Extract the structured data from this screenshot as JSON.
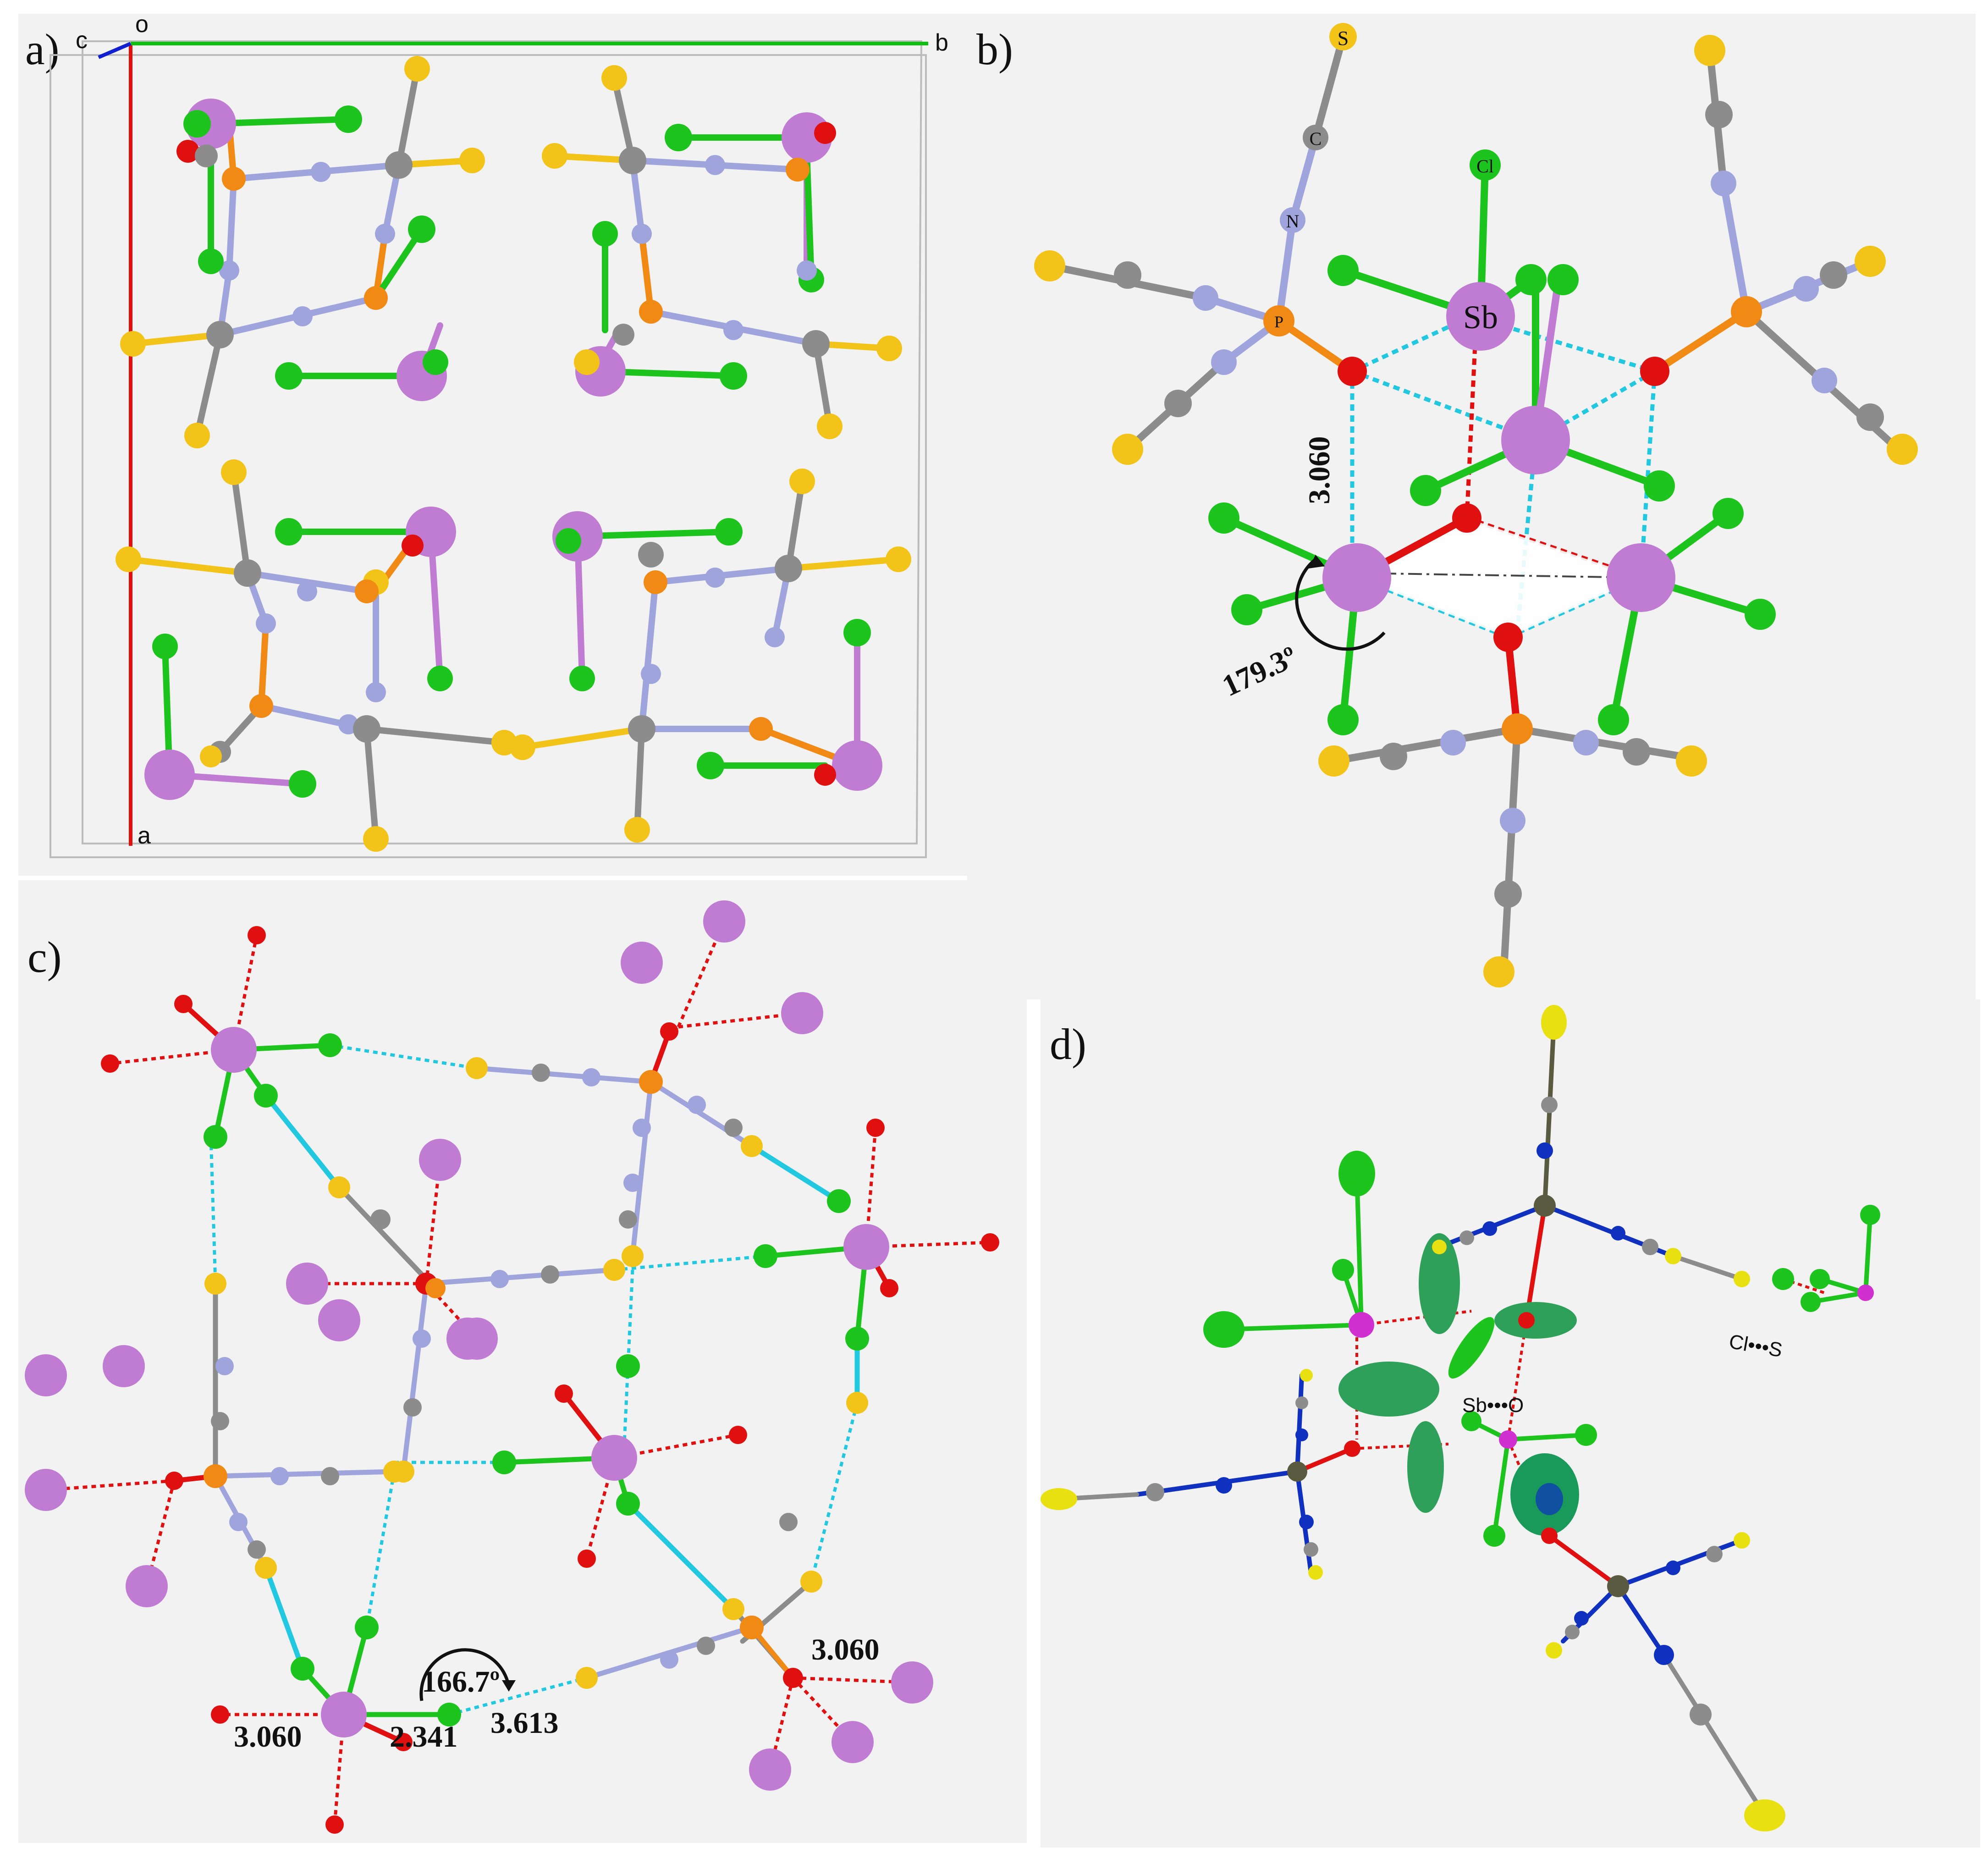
{
  "figure": {
    "panels": [
      {
        "id": "a",
        "label": "a)"
      },
      {
        "id": "b",
        "label": "b)"
      },
      {
        "id": "c",
        "label": "c)"
      },
      {
        "id": "d",
        "label": "d)"
      }
    ]
  },
  "panel_a": {
    "axis_labels": {
      "c": "c",
      "o": "o",
      "b": "b",
      "a": "a"
    }
  },
  "panel_b": {
    "atom_labels": {
      "s": "S",
      "c": "C",
      "n": "N",
      "p": "P",
      "cl": "Cl",
      "sb": "Sb"
    },
    "distance": "3.060",
    "angle": "179.3º"
  },
  "panel_c": {
    "angle": "166.7º",
    "distances": [
      "3.060",
      "2.341",
      "3.613",
      "3.060"
    ]
  },
  "panel_d": {
    "interaction_labels": [
      "Sb•••O",
      "Cl•••S"
    ]
  },
  "colors": {
    "sb": "#c07cd2",
    "cl": "#1ec41e",
    "s": "#f2c41a",
    "c": "#8c8c8c",
    "n": "#a0a4dc",
    "p": "#f08a14",
    "o": "#e01010",
    "contact_cyan": "#22c8e0",
    "contact_red": "#e01010",
    "axis_a": "#e01010",
    "axis_b": "#10c010",
    "axis_c": "#1020d0"
  }
}
